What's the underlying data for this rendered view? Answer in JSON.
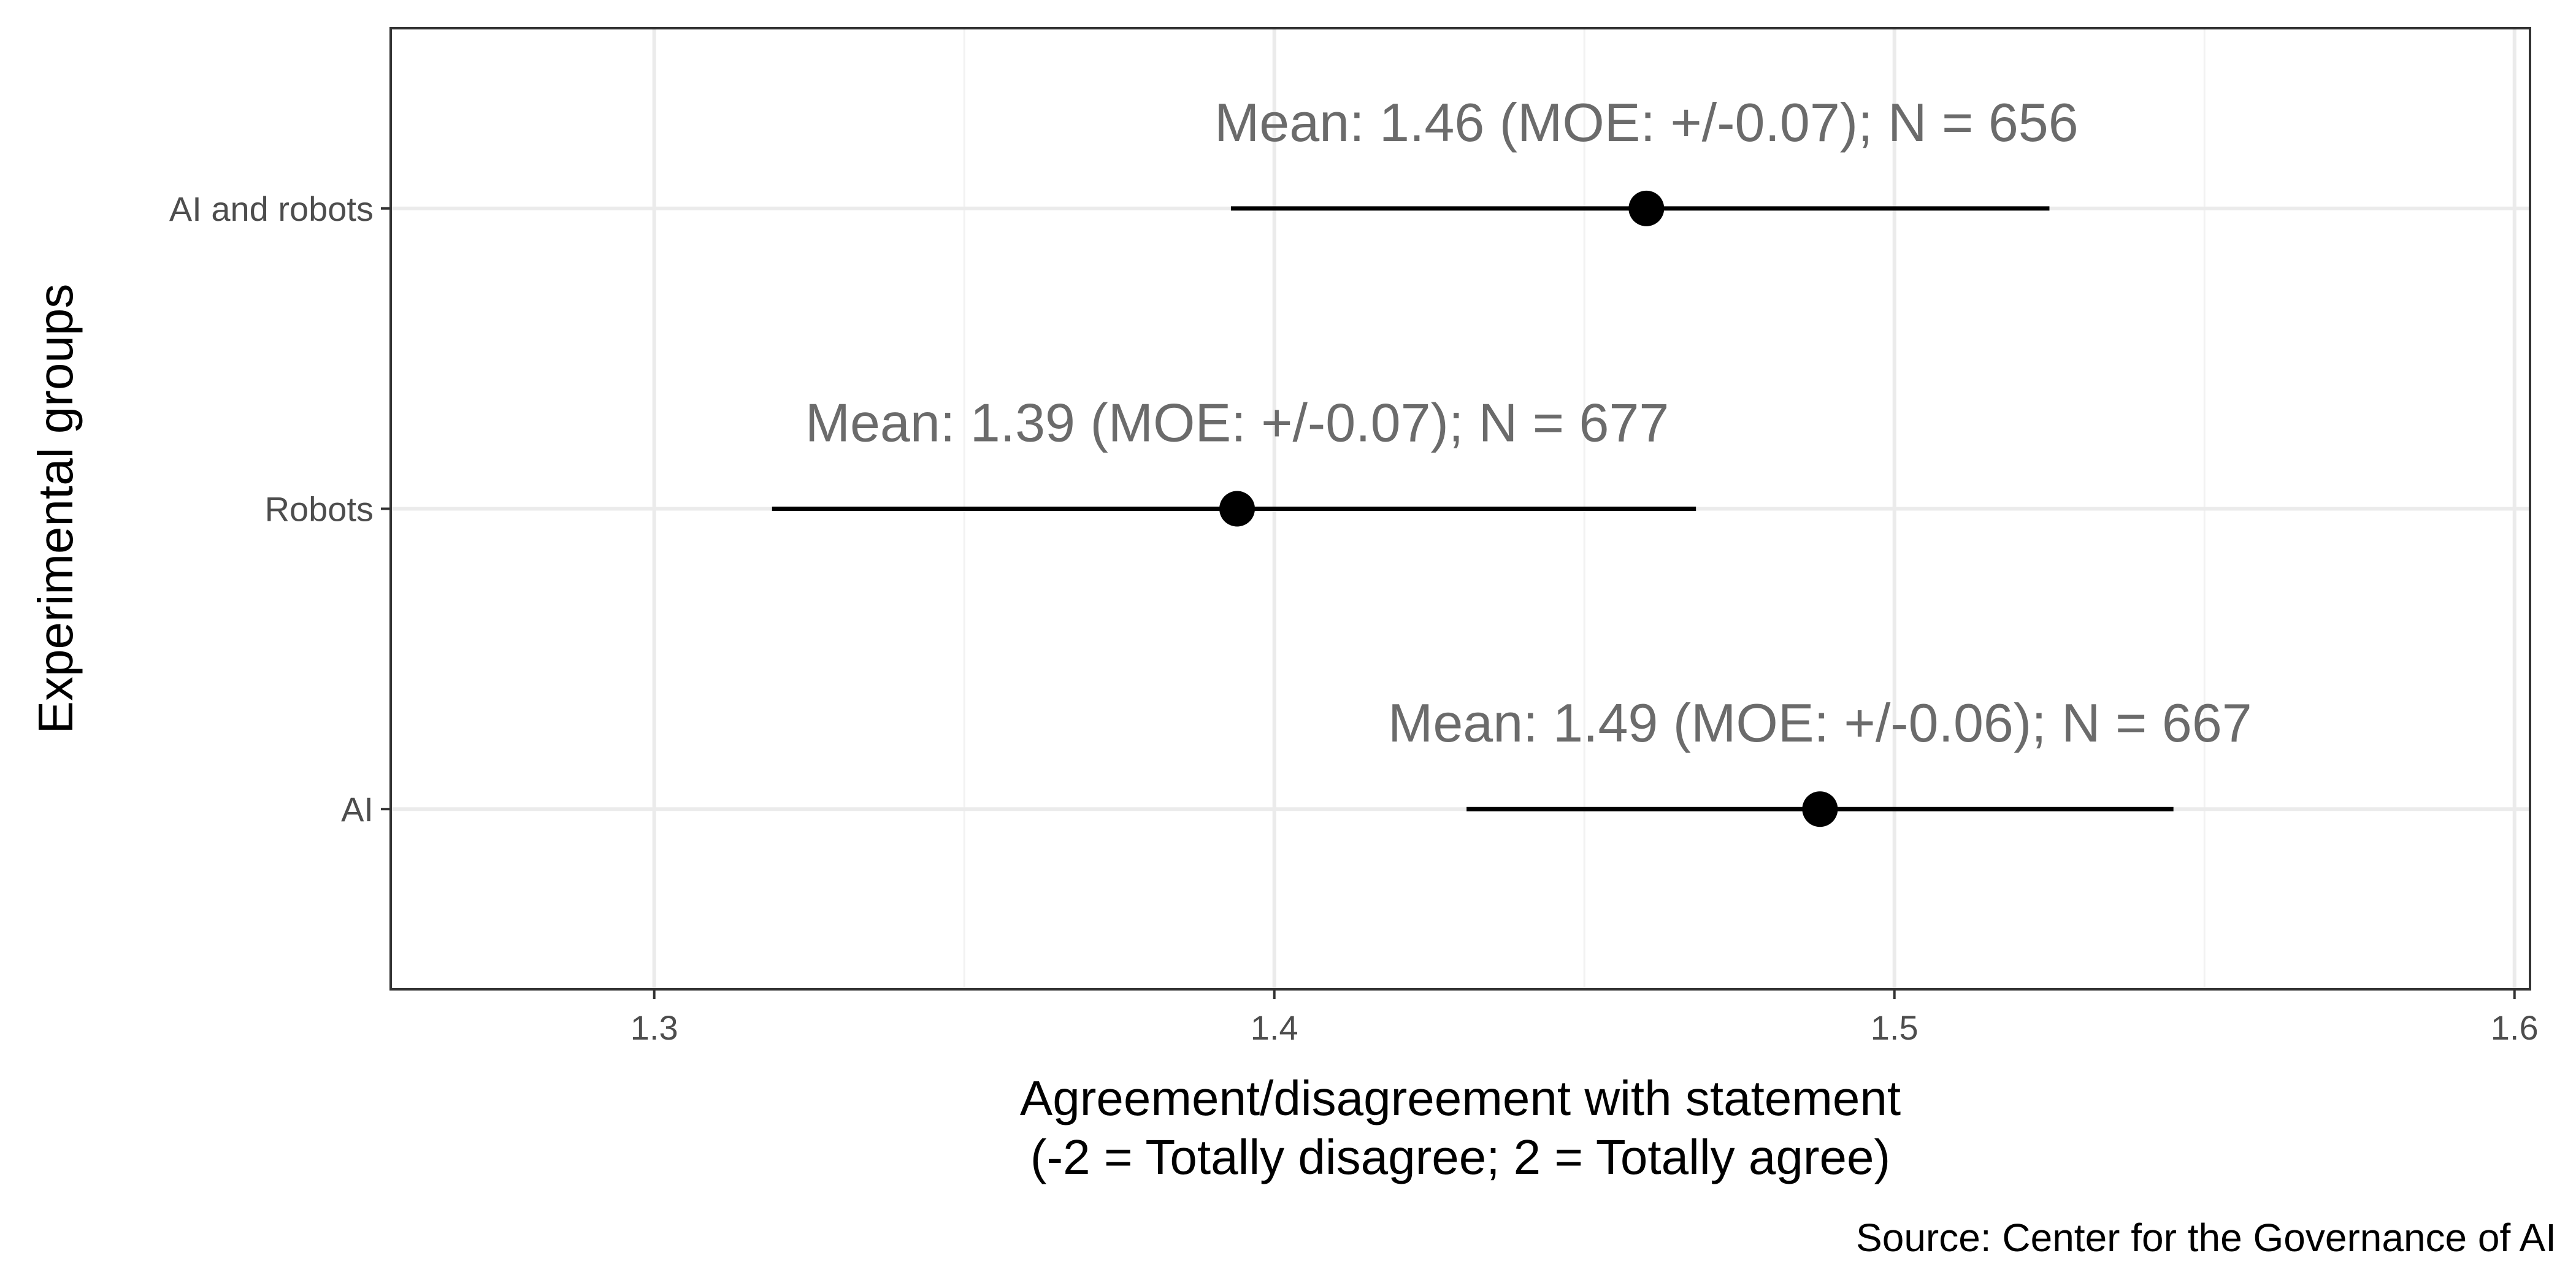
{
  "chart_data": {
    "type": "scatter",
    "subtype": "point-with-error-bars",
    "xlabel_lines": [
      "Agreement/disagreement with statement",
      "(-2 = Totally disagree; 2 = Totally agree)"
    ],
    "ylabel": "Experimental groups",
    "caption": "Source: Center for the Governance of AI",
    "xlim": [
      1.2575,
      1.6025
    ],
    "x_ticks": [
      {
        "value": 1.3,
        "label": "1.3"
      },
      {
        "value": 1.4,
        "label": "1.4"
      },
      {
        "value": 1.5,
        "label": "1.5"
      },
      {
        "value": 1.6,
        "label": "1.6"
      }
    ],
    "x_minor_gridlines": [
      1.35,
      1.45,
      1.55
    ],
    "categories": [
      "AI and robots",
      "Robots",
      "AI"
    ],
    "points": [
      {
        "category": "AI and robots",
        "mean": 1.46,
        "lower": 1.393,
        "upper": 1.525,
        "label": "Mean: 1.46 (MOE: +/-0.07); N = 656"
      },
      {
        "category": "Robots",
        "mean": 1.394,
        "lower": 1.319,
        "upper": 1.468,
        "label": "Mean: 1.39 (MOE: +/-0.07); N = 677"
      },
      {
        "category": "AI",
        "mean": 1.488,
        "lower": 1.431,
        "upper": 1.545,
        "label": "Mean: 1.49 (MOE: +/-0.06); N = 667"
      }
    ],
    "grid": true,
    "legend": "none",
    "colors": {
      "point": "#000000",
      "errorbar": "#000000",
      "annotation": "#6b6b6b",
      "grid_major": "#ebebeb",
      "grid_minor": "#f2f2f2",
      "panel_border": "#333333",
      "tick_label": "#4d4d4d"
    }
  }
}
